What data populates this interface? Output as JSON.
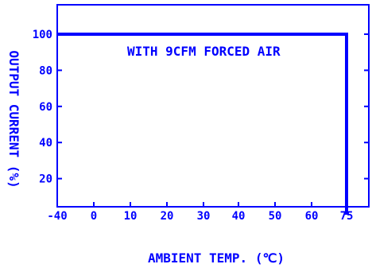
{
  "chart_data": {
    "type": "line",
    "xlabel": "AMBIENT TEMP. (℃)",
    "ylabel": "OUTPUT CURRENT (%)",
    "annotation": "WITH 9CFM FORCED AIR",
    "x_ticks": [
      "-40",
      "0",
      "10",
      "20",
      "30",
      "40",
      "50",
      "60",
      "75"
    ],
    "y_ticks": [
      "20",
      "40",
      "60",
      "80",
      "100"
    ],
    "series": [
      {
        "x": [
          "-40",
          "75",
          "75"
        ],
        "y": [
          100,
          100,
          0
        ]
      }
    ],
    "ylim": [
      0,
      112
    ],
    "grid": false,
    "color": "#0000ff"
  }
}
